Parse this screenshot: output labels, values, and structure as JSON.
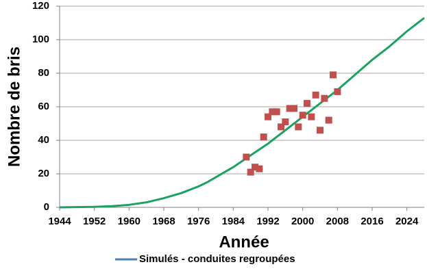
{
  "chart_data": {
    "type": "line",
    "x_label": "Année",
    "y_label": "Nombre de bris",
    "xlim": [
      1944,
      2028
    ],
    "xticks": [
      1944,
      1952,
      1960,
      1968,
      1976,
      1984,
      1992,
      2000,
      2008,
      2016,
      2024
    ],
    "ylim": [
      0,
      120
    ],
    "yticks": [
      0,
      20,
      40,
      60,
      80,
      100,
      120
    ],
    "grid": true,
    "series": [
      {
        "name": "Simulés - conduites regroupées",
        "type": "line",
        "color": "#1aa360",
        "legend_color": "#4a7ebb",
        "x": [
          1944,
          1952,
          1956,
          1960,
          1964,
          1968,
          1972,
          1976,
          1978,
          1980,
          1984,
          1988,
          1992,
          1996,
          2000,
          2004,
          2008,
          2012,
          2016,
          2020,
          2024,
          2028
        ],
        "values": [
          0,
          0.3,
          0.7,
          1.5,
          3,
          5.5,
          8.5,
          12.5,
          15,
          18,
          24,
          31,
          38,
          46,
          54,
          62,
          70,
          79,
          88,
          96,
          105,
          113
        ]
      },
      {
        "type": "scatter",
        "color": "#c0504d",
        "x": [
          1987,
          1988,
          1989,
          1990,
          1991,
          1992,
          1993,
          1994,
          1995,
          1996,
          1997,
          1998,
          1999,
          2000,
          2001,
          2002,
          2003,
          2004,
          2005,
          2006,
          2007,
          2008
        ],
        "values": [
          30,
          21,
          24,
          23,
          42,
          54,
          57,
          57,
          48,
          51,
          59,
          59,
          48,
          55,
          62,
          54,
          67,
          46,
          65,
          52,
          79,
          69
        ]
      }
    ]
  }
}
